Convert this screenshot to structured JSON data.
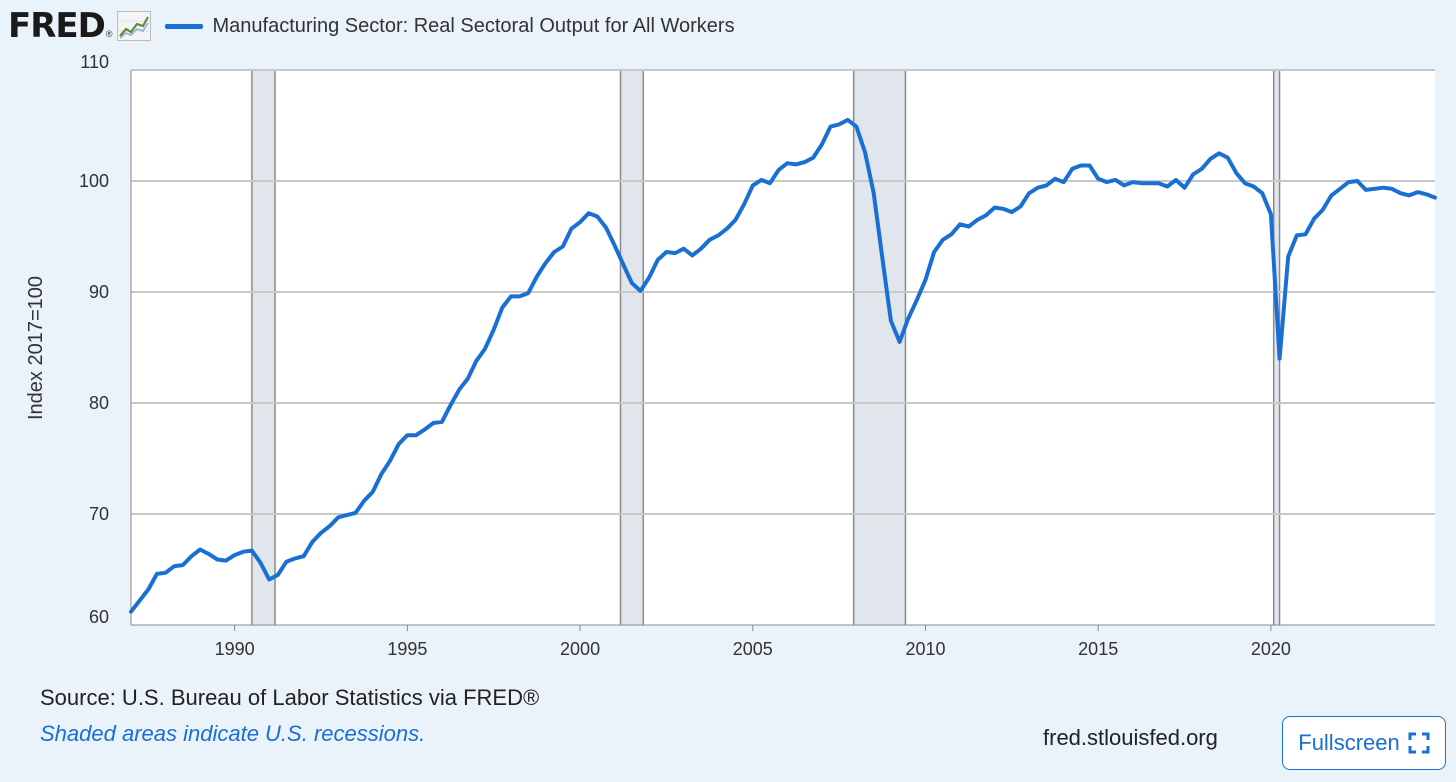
{
  "header": {
    "logo_text": "FRED",
    "logo_reg": "®",
    "logo_icon": "line-chart-icon"
  },
  "footer": {
    "source": "Source: U.S. Bureau of Labor Statistics via FRED®",
    "note": "Shaded areas indicate U.S. recessions.",
    "url": "fred.stlouisfed.org",
    "fullscreen_label": "Fullscreen",
    "fullscreen_icon": "expand-icon"
  },
  "colors": {
    "series": "#1a6fd4",
    "recession": "#e1e6ec",
    "background": "#eaf2fa",
    "plot_bg": "#ffffff",
    "grid": "#c8c8c8"
  },
  "chart_data": {
    "type": "line",
    "title": "",
    "ylabel": "Index 2017=100",
    "xlabel": "",
    "ylim": [
      60,
      110
    ],
    "xlim": [
      1987.0,
      2024.75
    ],
    "yticks": [
      60,
      70,
      80,
      90,
      100,
      110
    ],
    "xticks": [
      1990,
      1995,
      2000,
      2005,
      2010,
      2015,
      2020
    ],
    "grid": "horizontal",
    "legend_position": "top",
    "recessions": [
      [
        1990.5,
        1991.17
      ],
      [
        2001.17,
        2001.83
      ],
      [
        2007.92,
        2009.42
      ],
      [
        2020.08,
        2020.25
      ]
    ],
    "series": [
      {
        "name": "Manufacturing Sector: Real Sectoral Output for All Workers",
        "x": [
          1987.0,
          1987.25,
          1987.5,
          1987.75,
          1988.0,
          1988.25,
          1988.5,
          1988.75,
          1989.0,
          1989.25,
          1989.5,
          1989.75,
          1990.0,
          1990.25,
          1990.5,
          1990.75,
          1991.0,
          1991.25,
          1991.5,
          1991.75,
          1992.0,
          1992.25,
          1992.5,
          1992.75,
          1993.0,
          1993.25,
          1993.5,
          1993.75,
          1994.0,
          1994.25,
          1994.5,
          1994.75,
          1995.0,
          1995.25,
          1995.5,
          1995.75,
          1996.0,
          1996.25,
          1996.5,
          1996.75,
          1997.0,
          1997.25,
          1997.5,
          1997.75,
          1998.0,
          1998.25,
          1998.5,
          1998.75,
          1999.0,
          1999.25,
          1999.5,
          1999.75,
          2000.0,
          2000.25,
          2000.5,
          2000.75,
          2001.0,
          2001.25,
          2001.5,
          2001.75,
          2002.0,
          2002.25,
          2002.5,
          2002.75,
          2003.0,
          2003.25,
          2003.5,
          2003.75,
          2004.0,
          2004.25,
          2004.5,
          2004.75,
          2005.0,
          2005.25,
          2005.5,
          2005.75,
          2006.0,
          2006.25,
          2006.5,
          2006.75,
          2007.0,
          2007.25,
          2007.5,
          2007.75,
          2008.0,
          2008.25,
          2008.5,
          2008.75,
          2009.0,
          2009.25,
          2009.5,
          2009.75,
          2010.0,
          2010.25,
          2010.5,
          2010.75,
          2011.0,
          2011.25,
          2011.5,
          2011.75,
          2012.0,
          2012.25,
          2012.5,
          2012.75,
          2013.0,
          2013.25,
          2013.5,
          2013.75,
          2014.0,
          2014.25,
          2014.5,
          2014.75,
          2015.0,
          2015.25,
          2015.5,
          2015.75,
          2016.0,
          2016.25,
          2016.5,
          2016.75,
          2017.0,
          2017.25,
          2017.5,
          2017.75,
          2018.0,
          2018.25,
          2018.5,
          2018.75,
          2019.0,
          2019.25,
          2019.5,
          2019.75,
          2020.0,
          2020.25,
          2020.5,
          2020.75,
          2021.0,
          2021.25,
          2021.5,
          2021.75,
          2022.0,
          2022.25,
          2022.5,
          2022.75,
          2023.0,
          2023.25,
          2023.5,
          2023.75,
          2024.0,
          2024.25,
          2024.5,
          2024.75
        ],
        "values": [
          61.2,
          62.2,
          63.2,
          64.6,
          64.7,
          65.3,
          65.4,
          66.2,
          66.8,
          66.4,
          65.9,
          65.8,
          66.3,
          66.6,
          66.7,
          65.6,
          64.1,
          64.5,
          65.7,
          66.0,
          66.2,
          67.5,
          68.3,
          68.9,
          69.7,
          69.9,
          70.1,
          71.2,
          72.0,
          73.6,
          74.8,
          76.3,
          77.1,
          77.1,
          77.6,
          78.2,
          78.3,
          79.8,
          81.2,
          82.2,
          83.8,
          84.9,
          86.6,
          88.6,
          89.6,
          89.6,
          89.9,
          91.4,
          92.6,
          93.6,
          94.1,
          95.7,
          96.3,
          97.1,
          96.8,
          95.8,
          94.2,
          92.5,
          90.8,
          90.1,
          91.3,
          92.9,
          93.6,
          93.5,
          93.9,
          93.3,
          93.9,
          94.7,
          95.1,
          95.7,
          96.5,
          97.9,
          99.6,
          100.1,
          99.8,
          101.0,
          101.6,
          101.5,
          101.7,
          102.1,
          103.3,
          104.9,
          105.1,
          105.5,
          104.9,
          102.6,
          98.9,
          93.1,
          87.4,
          85.5,
          87.6,
          89.3,
          91.1,
          93.6,
          94.7,
          95.2,
          96.1,
          95.9,
          96.5,
          96.9,
          97.6,
          97.5,
          97.2,
          97.7,
          98.9,
          99.4,
          99.6,
          100.2,
          99.9,
          101.1,
          101.4,
          101.4,
          100.2,
          99.9,
          100.1,
          99.6,
          99.9,
          99.8,
          99.8,
          99.8,
          99.5,
          100.1,
          99.4,
          100.6,
          101.1,
          102.0,
          102.5,
          102.1,
          100.7,
          99.8,
          99.5,
          98.9,
          97.0,
          84.0,
          93.2,
          95.1,
          95.2,
          96.6,
          97.4,
          98.7,
          99.3,
          99.9,
          100.0,
          99.2,
          99.3,
          99.4,
          99.3,
          98.9,
          98.7,
          99.0,
          98.8,
          98.5
        ]
      }
    ]
  }
}
